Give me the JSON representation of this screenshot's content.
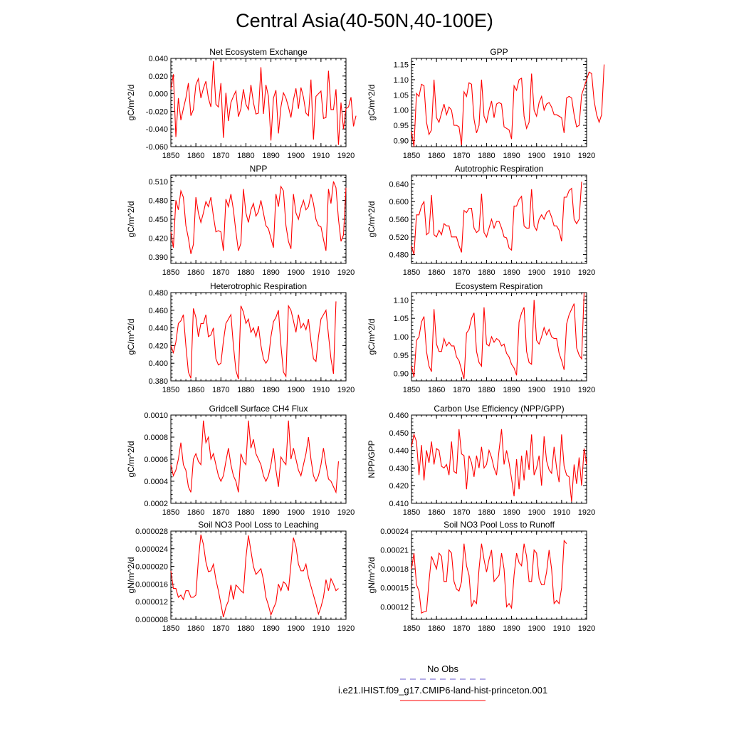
{
  "title": "Central Asia(40-50N,40-100E)",
  "legend": {
    "obs_label": "No Obs",
    "obs_color": "#6a5acd",
    "model_label": "i.e21.IHIST.f09_g17.CMIP6-land-hist-princeton.001",
    "model_color": "#ff0000"
  },
  "chart_data": [
    {
      "type": "line",
      "title": "Net Ecosystem Exchange",
      "ylabel": "gC/m^2/d",
      "xlim": [
        1850,
        1920
      ],
      "ylim": [
        -0.06,
        0.04
      ],
      "xticks": [
        "1850",
        "1860",
        "1870",
        "1880",
        "1890",
        "1900",
        "1910",
        "1920"
      ],
      "yticks": [
        "-0.060",
        "-0.040",
        "-0.020",
        "0.000",
        "0.020",
        "0.040"
      ],
      "series": [
        {
          "color": "#ff0000",
          "x_start": 1850,
          "values": [
            0.005,
            0.022,
            -0.049,
            -0.005,
            -0.03,
            -0.017,
            -0.005,
            0.012,
            -0.025,
            -0.018,
            0.01,
            0.017,
            -0.005,
            0.006,
            0.014,
            -0.005,
            -0.015,
            0.037,
            -0.012,
            -0.015,
            0.012,
            -0.05,
            0.001,
            -0.031,
            -0.01,
            -0.003,
            0.003,
            -0.026,
            -0.017,
            0.005,
            -0.012,
            -0.018,
            0.01,
            -0.01,
            -0.023,
            -0.022,
            0.03,
            -0.023,
            0.01,
            -0.003,
            -0.053,
            -0.005,
            0.004,
            -0.045,
            -0.015,
            0.001,
            -0.005,
            -0.015,
            -0.027,
            -0.007,
            0.006,
            -0.017,
            0.007,
            -0.004,
            -0.022,
            -0.025,
            0.016,
            -0.052,
            -0.003,
            0.0,
            0.003,
            -0.028,
            -0.027,
            0.026,
            -0.018,
            -0.018,
            0.005,
            -0.058,
            -0.01,
            -0.04,
            -0.017,
            -0.015,
            -0.004,
            -0.037,
            -0.025
          ]
        }
      ]
    },
    {
      "type": "line",
      "title": "GPP",
      "ylabel": "gC/m^2/d",
      "xlim": [
        1850,
        1920
      ],
      "ylim": [
        0.88,
        1.17
      ],
      "xticks": [
        "1850",
        "1860",
        "1870",
        "1880",
        "1890",
        "1900",
        "1910",
        "1920"
      ],
      "yticks": [
        "0.90",
        "0.95",
        "1.00",
        "1.05",
        "1.10",
        "1.15"
      ],
      "series": [
        {
          "color": "#ff0000",
          "x_start": 1850,
          "values": [
            0.93,
            0.88,
            1.055,
            1.045,
            1.085,
            1.08,
            0.96,
            0.92,
            0.935,
            1.1,
            0.975,
            0.96,
            0.99,
            1.02,
            0.985,
            1.01,
            1.0,
            0.95,
            0.95,
            0.945,
            0.885,
            1.06,
            1.045,
            1.09,
            1.085,
            0.97,
            0.925,
            0.95,
            1.1,
            0.98,
            0.96,
            1.0,
            1.03,
            0.975,
            1.02,
            1.025,
            1.02,
            0.945,
            0.94,
            0.935,
            0.905,
            1.08,
            1.065,
            1.1,
            1.105,
            0.98,
            0.94,
            0.96,
            1.12,
            1.0,
            0.98,
            1.025,
            1.045,
            1.0,
            1.02,
            1.025,
            1.01,
            0.985,
            0.985,
            0.98,
            0.975,
            0.925,
            1.04,
            1.045,
            1.04,
            0.985,
            0.945,
            0.95,
            1.05,
            1.075,
            1.1,
            1.125,
            1.12,
            1.03,
            0.985,
            0.96,
            0.985,
            1.15
          ]
        }
      ]
    },
    {
      "type": "line",
      "title": "NPP",
      "ylabel": "gC/m^2/d",
      "xlim": [
        1850,
        1920
      ],
      "ylim": [
        0.38,
        0.52
      ],
      "xticks": [
        "1850",
        "1860",
        "1870",
        "1880",
        "1890",
        "1900",
        "1910",
        "1920"
      ],
      "yticks": [
        "0.390",
        "0.420",
        "0.450",
        "0.480",
        "0.510"
      ],
      "series": [
        {
          "color": "#ff0000",
          "x_start": 1850,
          "values": [
            0.43,
            0.405,
            0.48,
            0.465,
            0.495,
            0.485,
            0.44,
            0.42,
            0.395,
            0.41,
            0.485,
            0.46,
            0.445,
            0.46,
            0.478,
            0.47,
            0.485,
            0.455,
            0.43,
            0.432,
            0.43,
            0.4,
            0.482,
            0.47,
            0.49,
            0.465,
            0.43,
            0.4,
            0.412,
            0.498,
            0.46,
            0.445,
            0.465,
            0.475,
            0.455,
            0.462,
            0.48,
            0.46,
            0.44,
            0.435,
            0.42,
            0.405,
            0.49,
            0.47,
            0.502,
            0.495,
            0.44,
            0.415,
            0.403,
            0.49,
            0.46,
            0.45,
            0.468,
            0.48,
            0.465,
            0.47,
            0.49,
            0.475,
            0.45,
            0.44,
            0.438,
            0.418,
            0.4,
            0.498,
            0.475,
            0.51,
            0.5,
            0.45,
            0.415,
            0.425,
            0.5
          ]
        }
      ]
    },
    {
      "type": "line",
      "title": "Autotrophic Respiration",
      "ylabel": "gC/m^2/d",
      "xlim": [
        1850,
        1920
      ],
      "ylim": [
        0.46,
        0.66
      ],
      "xticks": [
        "1850",
        "1860",
        "1870",
        "1880",
        "1890",
        "1900",
        "1910",
        "1920"
      ],
      "yticks": [
        "0.480",
        "0.520",
        "0.560",
        "0.600",
        "0.640"
      ],
      "series": [
        {
          "color": "#ff0000",
          "x_start": 1850,
          "values": [
            0.5,
            0.48,
            0.57,
            0.57,
            0.59,
            0.6,
            0.525,
            0.53,
            0.615,
            0.525,
            0.52,
            0.535,
            0.525,
            0.55,
            0.545,
            0.545,
            0.52,
            0.52,
            0.52,
            0.5,
            0.485,
            0.58,
            0.575,
            0.585,
            0.585,
            0.54,
            0.53,
            0.535,
            0.618,
            0.53,
            0.52,
            0.54,
            0.56,
            0.54,
            0.555,
            0.555,
            0.54,
            0.52,
            0.518,
            0.495,
            0.49,
            0.59,
            0.59,
            0.605,
            0.612,
            0.545,
            0.54,
            0.54,
            0.628,
            0.545,
            0.535,
            0.56,
            0.57,
            0.56,
            0.575,
            0.58,
            0.565,
            0.545,
            0.545,
            0.535,
            0.51,
            0.61,
            0.61,
            0.625,
            0.63,
            0.56,
            0.55,
            0.56,
            0.645
          ]
        }
      ]
    },
    {
      "type": "line",
      "title": "Heterotrophic Respiration",
      "ylabel": "gC/m^2/d",
      "xlim": [
        1850,
        1920
      ],
      "ylim": [
        0.38,
        0.48
      ],
      "xticks": [
        "1850",
        "1860",
        "1870",
        "1880",
        "1890",
        "1900",
        "1910",
        "1920"
      ],
      "yticks": [
        "0.380",
        "0.400",
        "0.420",
        "0.440",
        "0.460",
        "0.480"
      ],
      "series": [
        {
          "color": "#ff0000",
          "x_start": 1850,
          "values": [
            0.42,
            0.412,
            0.424,
            0.445,
            0.448,
            0.455,
            0.42,
            0.39,
            0.383,
            0.462,
            0.452,
            0.43,
            0.445,
            0.445,
            0.455,
            0.43,
            0.432,
            0.44,
            0.405,
            0.398,
            0.4,
            0.425,
            0.445,
            0.45,
            0.455,
            0.42,
            0.392,
            0.382,
            0.465,
            0.458,
            0.445,
            0.45,
            0.435,
            0.44,
            0.43,
            0.442,
            0.42,
            0.405,
            0.4,
            0.405,
            0.43,
            0.447,
            0.452,
            0.46,
            0.42,
            0.39,
            0.385,
            0.465,
            0.46,
            0.448,
            0.435,
            0.455,
            0.44,
            0.445,
            0.438,
            0.45,
            0.425,
            0.405,
            0.402,
            0.43,
            0.45,
            0.455,
            0.46,
            0.432,
            0.405,
            0.388,
            0.47
          ]
        }
      ]
    },
    {
      "type": "line",
      "title": "Ecosystem Respiration",
      "ylabel": "gC/m^2/d",
      "xlim": [
        1850,
        1920
      ],
      "ylim": [
        0.88,
        1.12
      ],
      "xticks": [
        "1850",
        "1860",
        "1870",
        "1880",
        "1890",
        "1900",
        "1910",
        "1920"
      ],
      "yticks": [
        "0.90",
        "0.95",
        "1.00",
        "1.05",
        "1.10"
      ],
      "series": [
        {
          "color": "#ff0000",
          "x_start": 1850,
          "values": [
            0.92,
            0.89,
            0.99,
            1.0,
            1.04,
            1.055,
            0.96,
            0.92,
            0.905,
            1.075,
            0.98,
            0.96,
            0.96,
            0.995,
            0.975,
            0.985,
            0.975,
            0.975,
            0.945,
            0.935,
            0.91,
            0.885,
            1.01,
            1.02,
            1.05,
            1.065,
            0.96,
            0.93,
            0.92,
            1.08,
            0.98,
            0.975,
            1.0,
            0.985,
            0.995,
            0.99,
            0.975,
            0.98,
            0.955,
            0.945,
            0.925,
            0.915,
            0.895,
            1.04,
            1.065,
            1.08,
            0.96,
            0.93,
            0.925,
            1.1,
            0.99,
            0.98,
            1.0,
            1.025,
            1.005,
            1.02,
            1.0,
            0.995,
            0.995,
            0.955,
            0.935,
            0.91,
            1.035,
            1.06,
            1.075,
            1.09,
            0.97,
            0.95,
            0.94,
            1.12
          ]
        }
      ]
    },
    {
      "type": "line",
      "title": "Gridcell Surface CH4 Flux",
      "ylabel": "gC/m^2/d",
      "xlim": [
        1850,
        1920
      ],
      "ylim": [
        0.0002,
        0.001
      ],
      "xticks": [
        "1850",
        "1860",
        "1870",
        "1880",
        "1890",
        "1900",
        "1910",
        "1920"
      ],
      "yticks": [
        "0.0002",
        "0.0004",
        "0.0006",
        "0.0008",
        "0.0010"
      ],
      "series": [
        {
          "color": "#ff0000",
          "x_start": 1850,
          "values": [
            0.00055,
            0.00045,
            0.0005,
            0.0006,
            0.00075,
            0.00055,
            0.0005,
            0.00035,
            0.0003,
            0.0006,
            0.00065,
            0.00058,
            0.00055,
            0.00095,
            0.00075,
            0.0008,
            0.0006,
            0.00065,
            0.00055,
            0.00045,
            0.0004,
            0.00045,
            0.00058,
            0.0007,
            0.00055,
            0.00045,
            0.0004,
            0.0003,
            0.00065,
            0.00058,
            0.00055,
            0.00095,
            0.0007,
            0.00078,
            0.00065,
            0.0006,
            0.00055,
            0.00045,
            0.0004,
            0.00045,
            0.00055,
            0.0007,
            0.0005,
            0.00035,
            0.00062,
            0.00058,
            0.00055,
            0.00095,
            0.0006,
            0.0007,
            0.0006,
            0.0005,
            0.00045,
            0.00055,
            0.00065,
            0.0008,
            0.0006,
            0.00045,
            0.0004,
            0.00045,
            0.00055,
            0.0007,
            0.00055,
            0.00042,
            0.0004,
            0.00035,
            0.0003,
            0.00058
          ]
        }
      ]
    },
    {
      "type": "line",
      "title": "Carbon Use Efficiency (NPP/GPP)",
      "ylabel": "NPP/GPP",
      "xlim": [
        1850,
        1920
      ],
      "ylim": [
        0.41,
        0.46
      ],
      "xticks": [
        "1850",
        "1860",
        "1870",
        "1880",
        "1890",
        "1900",
        "1910",
        "1920"
      ],
      "yticks": [
        "0.410",
        "0.420",
        "0.430",
        "0.440",
        "0.450",
        "0.460"
      ],
      "series": [
        {
          "color": "#ff0000",
          "x_start": 1850,
          "values": [
            0.442,
            0.449,
            0.445,
            0.426,
            0.443,
            0.423,
            0.44,
            0.433,
            0.445,
            0.432,
            0.441,
            0.44,
            0.431,
            0.43,
            0.432,
            0.426,
            0.445,
            0.428,
            0.427,
            0.452,
            0.438,
            0.437,
            0.418,
            0.437,
            0.433,
            0.425,
            0.437,
            0.43,
            0.442,
            0.43,
            0.432,
            0.44,
            0.436,
            0.43,
            0.426,
            0.44,
            0.452,
            0.432,
            0.44,
            0.433,
            0.424,
            0.414,
            0.435,
            0.418,
            0.437,
            0.423,
            0.44,
            0.429,
            0.449,
            0.426,
            0.43,
            0.437,
            0.42,
            0.448,
            0.434,
            0.429,
            0.427,
            0.442,
            0.43,
            0.422,
            0.449,
            0.431,
            0.426,
            0.425,
            0.411,
            0.432,
            0.421,
            0.436,
            0.42,
            0.441,
            0.432
          ]
        }
      ]
    },
    {
      "type": "line",
      "title": "Soil NO3 Pool Loss to Leaching",
      "ylabel": "gN/m^2/d",
      "xlim": [
        1850,
        1920
      ],
      "ylim": [
        8e-06,
        2.8e-05
      ],
      "xticks": [
        "1850",
        "1860",
        "1870",
        "1880",
        "1890",
        "1900",
        "1910",
        "1920"
      ],
      "yticks": [
        "0.000008",
        "0.000012",
        "0.000016",
        "0.000020",
        "0.000024",
        "0.000028"
      ],
      "series": [
        {
          "color": "#ff0000",
          "x_start": 1850,
          "values": [
            1.9e-05,
            1.5e-05,
            1.5e-05,
            1.3e-05,
            1.35e-05,
            1.25e-05,
            1.45e-05,
            1.45e-05,
            1.3e-05,
            1.3e-05,
            1.35e-05,
            2.15e-05,
            2.72e-05,
            2.5e-05,
            2.1e-05,
            1.88e-05,
            1.9e-05,
            2.05e-05,
            1.7e-05,
            1.45e-05,
            1.15e-05,
            8.5e-06,
            1.08e-05,
            1.22e-05,
            1.58e-05,
            1.25e-05,
            1.58e-05,
            1.52e-05,
            1.45e-05,
            1.4e-05,
            2.2e-05,
            2.7e-05,
            2.35e-05,
            2e-05,
            1.82e-05,
            1.88e-05,
            1.95e-05,
            1.7e-05,
            1.3e-05,
            1.12e-05,
            9e-06,
            1.05e-05,
            1.18e-05,
            1.6e-05,
            1.45e-05,
            1.65e-05,
            1.6e-05,
            1.45e-05,
            2.05e-05,
            2.65e-05,
            2.45e-05,
            2.05e-05,
            1.9e-05,
            1.9e-05,
            2.05e-05,
            1.75e-05,
            1.55e-05,
            1.35e-05,
            1.15e-05,
            9.2e-06,
            1.08e-05,
            1.3e-05,
            1.7e-05,
            1.45e-05,
            1.72e-05,
            1.6e-05,
            1.45e-05,
            1.5e-05
          ]
        }
      ]
    },
    {
      "type": "line",
      "title": "Soil NO3 Pool Loss to Runoff",
      "ylabel": "gN/m^2/d",
      "xlim": [
        1850,
        1920
      ],
      "ylim": [
        0.0001,
        0.00024
      ],
      "xticks": [
        "1850",
        "1860",
        "1870",
        "1880",
        "1890",
        "1900",
        "1910",
        "1920"
      ],
      "yticks": [
        "0.00012",
        "0.00015",
        "0.00018",
        "0.00021",
        "0.00024"
      ],
      "series": [
        {
          "color": "#ff0000",
          "x_start": 1850,
          "values": [
            0.00018,
            0.000205,
            0.000155,
            0.000145,
            0.00011,
            0.000112,
            0.000113,
            0.00016,
            0.0002,
            0.00019,
            0.00018,
            0.000205,
            0.0002,
            0.00016,
            0.00016,
            0.00021,
            0.000205,
            0.00016,
            0.000148,
            0.000145,
            0.00016,
            0.00022,
            0.000185,
            0.00017,
            0.00012,
            0.00013,
            0.000125,
            0.00018,
            0.00022,
            0.000195,
            0.000175,
            0.000195,
            0.00021,
            0.00016,
            0.000165,
            0.00017,
            0.000205,
            0.00018,
            0.00012,
            0.000125,
            0.000118,
            0.00017,
            0.000205,
            0.00019,
            0.000185,
            0.00022,
            0.0002,
            0.00016,
            0.00016,
            0.00021,
            0.000205,
            0.000165,
            0.000155,
            0.000155,
            0.000175,
            0.00021,
            0.00018,
            0.000125,
            0.00013,
            0.000125,
            0.00015,
            0.000225,
            0.00022
          ]
        }
      ]
    }
  ]
}
